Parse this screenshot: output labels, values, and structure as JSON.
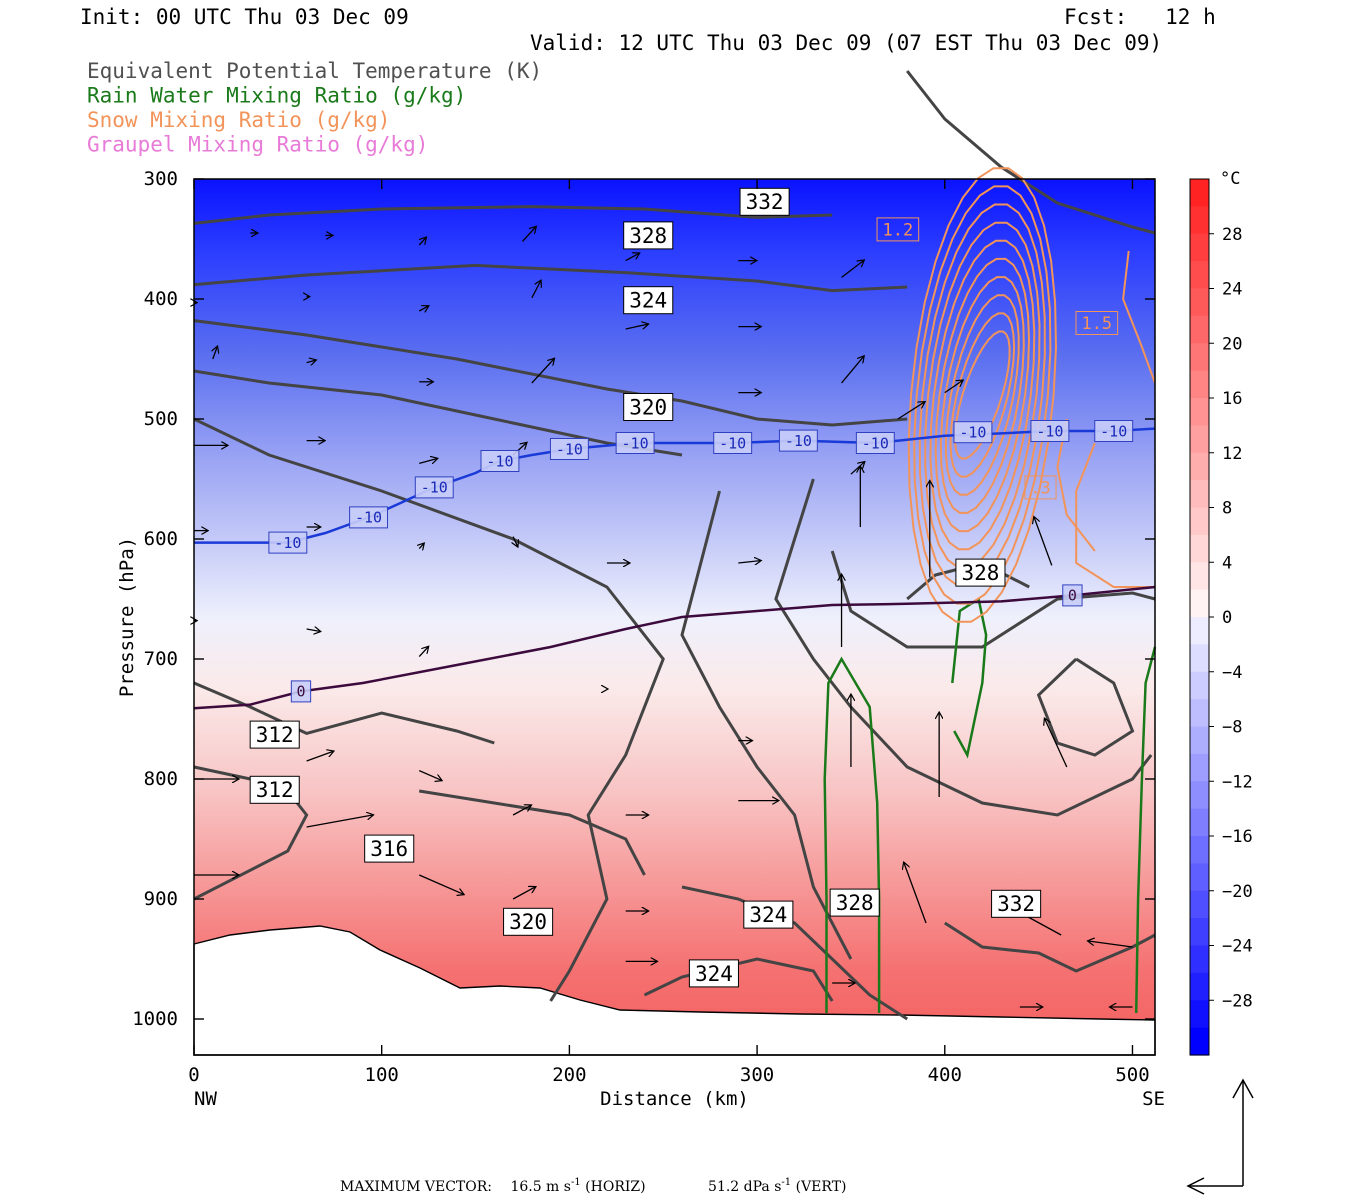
{
  "header": {
    "init": "Init: 00 UTC Thu 03 Dec 09",
    "fcst": "Fcst:   12 h",
    "valid": "Valid: 12 UTC Thu 03 Dec 09 (07 EST Thu 03 Dec 09)"
  },
  "legend": [
    {
      "label": "Equivalent Potential Temperature (K)",
      "color": "#505050"
    },
    {
      "label": "Rain Water Mixing Ratio (g/kg)",
      "color": "#1a7a1a"
    },
    {
      "label": "Snow Mixing Ratio (g/kg)",
      "color": "#f2945a"
    },
    {
      "label": "Graupel Mixing Ratio (g/kg)",
      "color": "#e87ad8"
    }
  ],
  "footer": {
    "max_vector_label": "MAXIMUM VECTOR:",
    "horiz": "16.5 m s",
    "horiz_sup": "-1",
    "horiz_tail": " (HORIZ)",
    "vert": "51.2 dPa s",
    "vert_sup": "-1",
    "vert_tail": " (VERT)"
  },
  "chart_data": {
    "type": "heatmap",
    "description_of_fill": "temperature cross-section",
    "xlabel": "Distance (km)",
    "ylabel": "Pressure (hPa)",
    "x_left_label": "NW",
    "x_right_label": "SE",
    "xlim": [
      0,
      512
    ],
    "ylim": [
      300,
      1030
    ],
    "x_ticks": [
      0,
      100,
      200,
      300,
      400,
      500
    ],
    "y_ticks": [
      300,
      400,
      500,
      600,
      700,
      800,
      900,
      1000
    ],
    "colorbar": {
      "unit": "°C",
      "range": [
        -32,
        32
      ],
      "labels": [
        28,
        24,
        20,
        16,
        12,
        8,
        4,
        0,
        -4,
        -8,
        -12,
        -16,
        -20,
        -24,
        -28
      ],
      "cold_color": "#0000ff",
      "warm_color": "#ff3030"
    },
    "isotherm_labels": [
      {
        "value": "-10",
        "x": 50,
        "p": 603
      },
      {
        "value": "-10",
        "x": 93,
        "p": 582
      },
      {
        "value": "-10",
        "x": 128,
        "p": 557
      },
      {
        "value": "-10",
        "x": 163,
        "p": 535
      },
      {
        "value": "-10",
        "x": 200,
        "p": 525
      },
      {
        "value": "-10",
        "x": 235,
        "p": 520
      },
      {
        "value": "-10",
        "x": 287,
        "p": 520
      },
      {
        "value": "-10",
        "x": 322,
        "p": 518
      },
      {
        "value": "-10",
        "x": 363,
        "p": 520
      },
      {
        "value": "-10",
        "x": 415,
        "p": 511
      },
      {
        "value": "-10",
        "x": 456,
        "p": 510
      },
      {
        "value": "-10",
        "x": 490,
        "p": 510
      },
      {
        "value": "0",
        "x": 57,
        "p": 727
      },
      {
        "value": "0",
        "x": 468,
        "p": 647
      }
    ],
    "theta_e_labels": [
      {
        "value": "332",
        "x": 304,
        "p": 319
      },
      {
        "value": "328",
        "x": 242,
        "p": 347
      },
      {
        "value": "324",
        "x": 242,
        "p": 401
      },
      {
        "value": "320",
        "x": 242,
        "p": 490
      },
      {
        "value": "312",
        "x": 43,
        "p": 763
      },
      {
        "value": "312",
        "x": 43,
        "p": 809
      },
      {
        "value": "316",
        "x": 104,
        "p": 858
      },
      {
        "value": "320",
        "x": 178,
        "p": 919
      },
      {
        "value": "324",
        "x": 306,
        "p": 913
      },
      {
        "value": "324",
        "x": 277,
        "p": 962
      },
      {
        "value": "328",
        "x": 352,
        "p": 903
      },
      {
        "value": "332",
        "x": 438,
        "p": 904
      },
      {
        "value": "328",
        "x": 419,
        "p": 628
      }
    ],
    "snow_labels": [
      {
        "value": "1.2",
        "x": 375,
        "p": 342
      },
      {
        "value": "1.5",
        "x": 481,
        "p": 420
      },
      {
        "value": ".3",
        "x": 451,
        "p": 557
      }
    ],
    "series": [
      {
        "name": "Equivalent Potential Temperature (K)",
        "contours": [
          312,
          316,
          320,
          324,
          328,
          332
        ]
      },
      {
        "name": "Rain Water Mixing Ratio (g/kg)"
      },
      {
        "name": "Snow Mixing Ratio (g/kg)"
      },
      {
        "name": "Graupel Mixing Ratio (g/kg)"
      }
    ]
  }
}
